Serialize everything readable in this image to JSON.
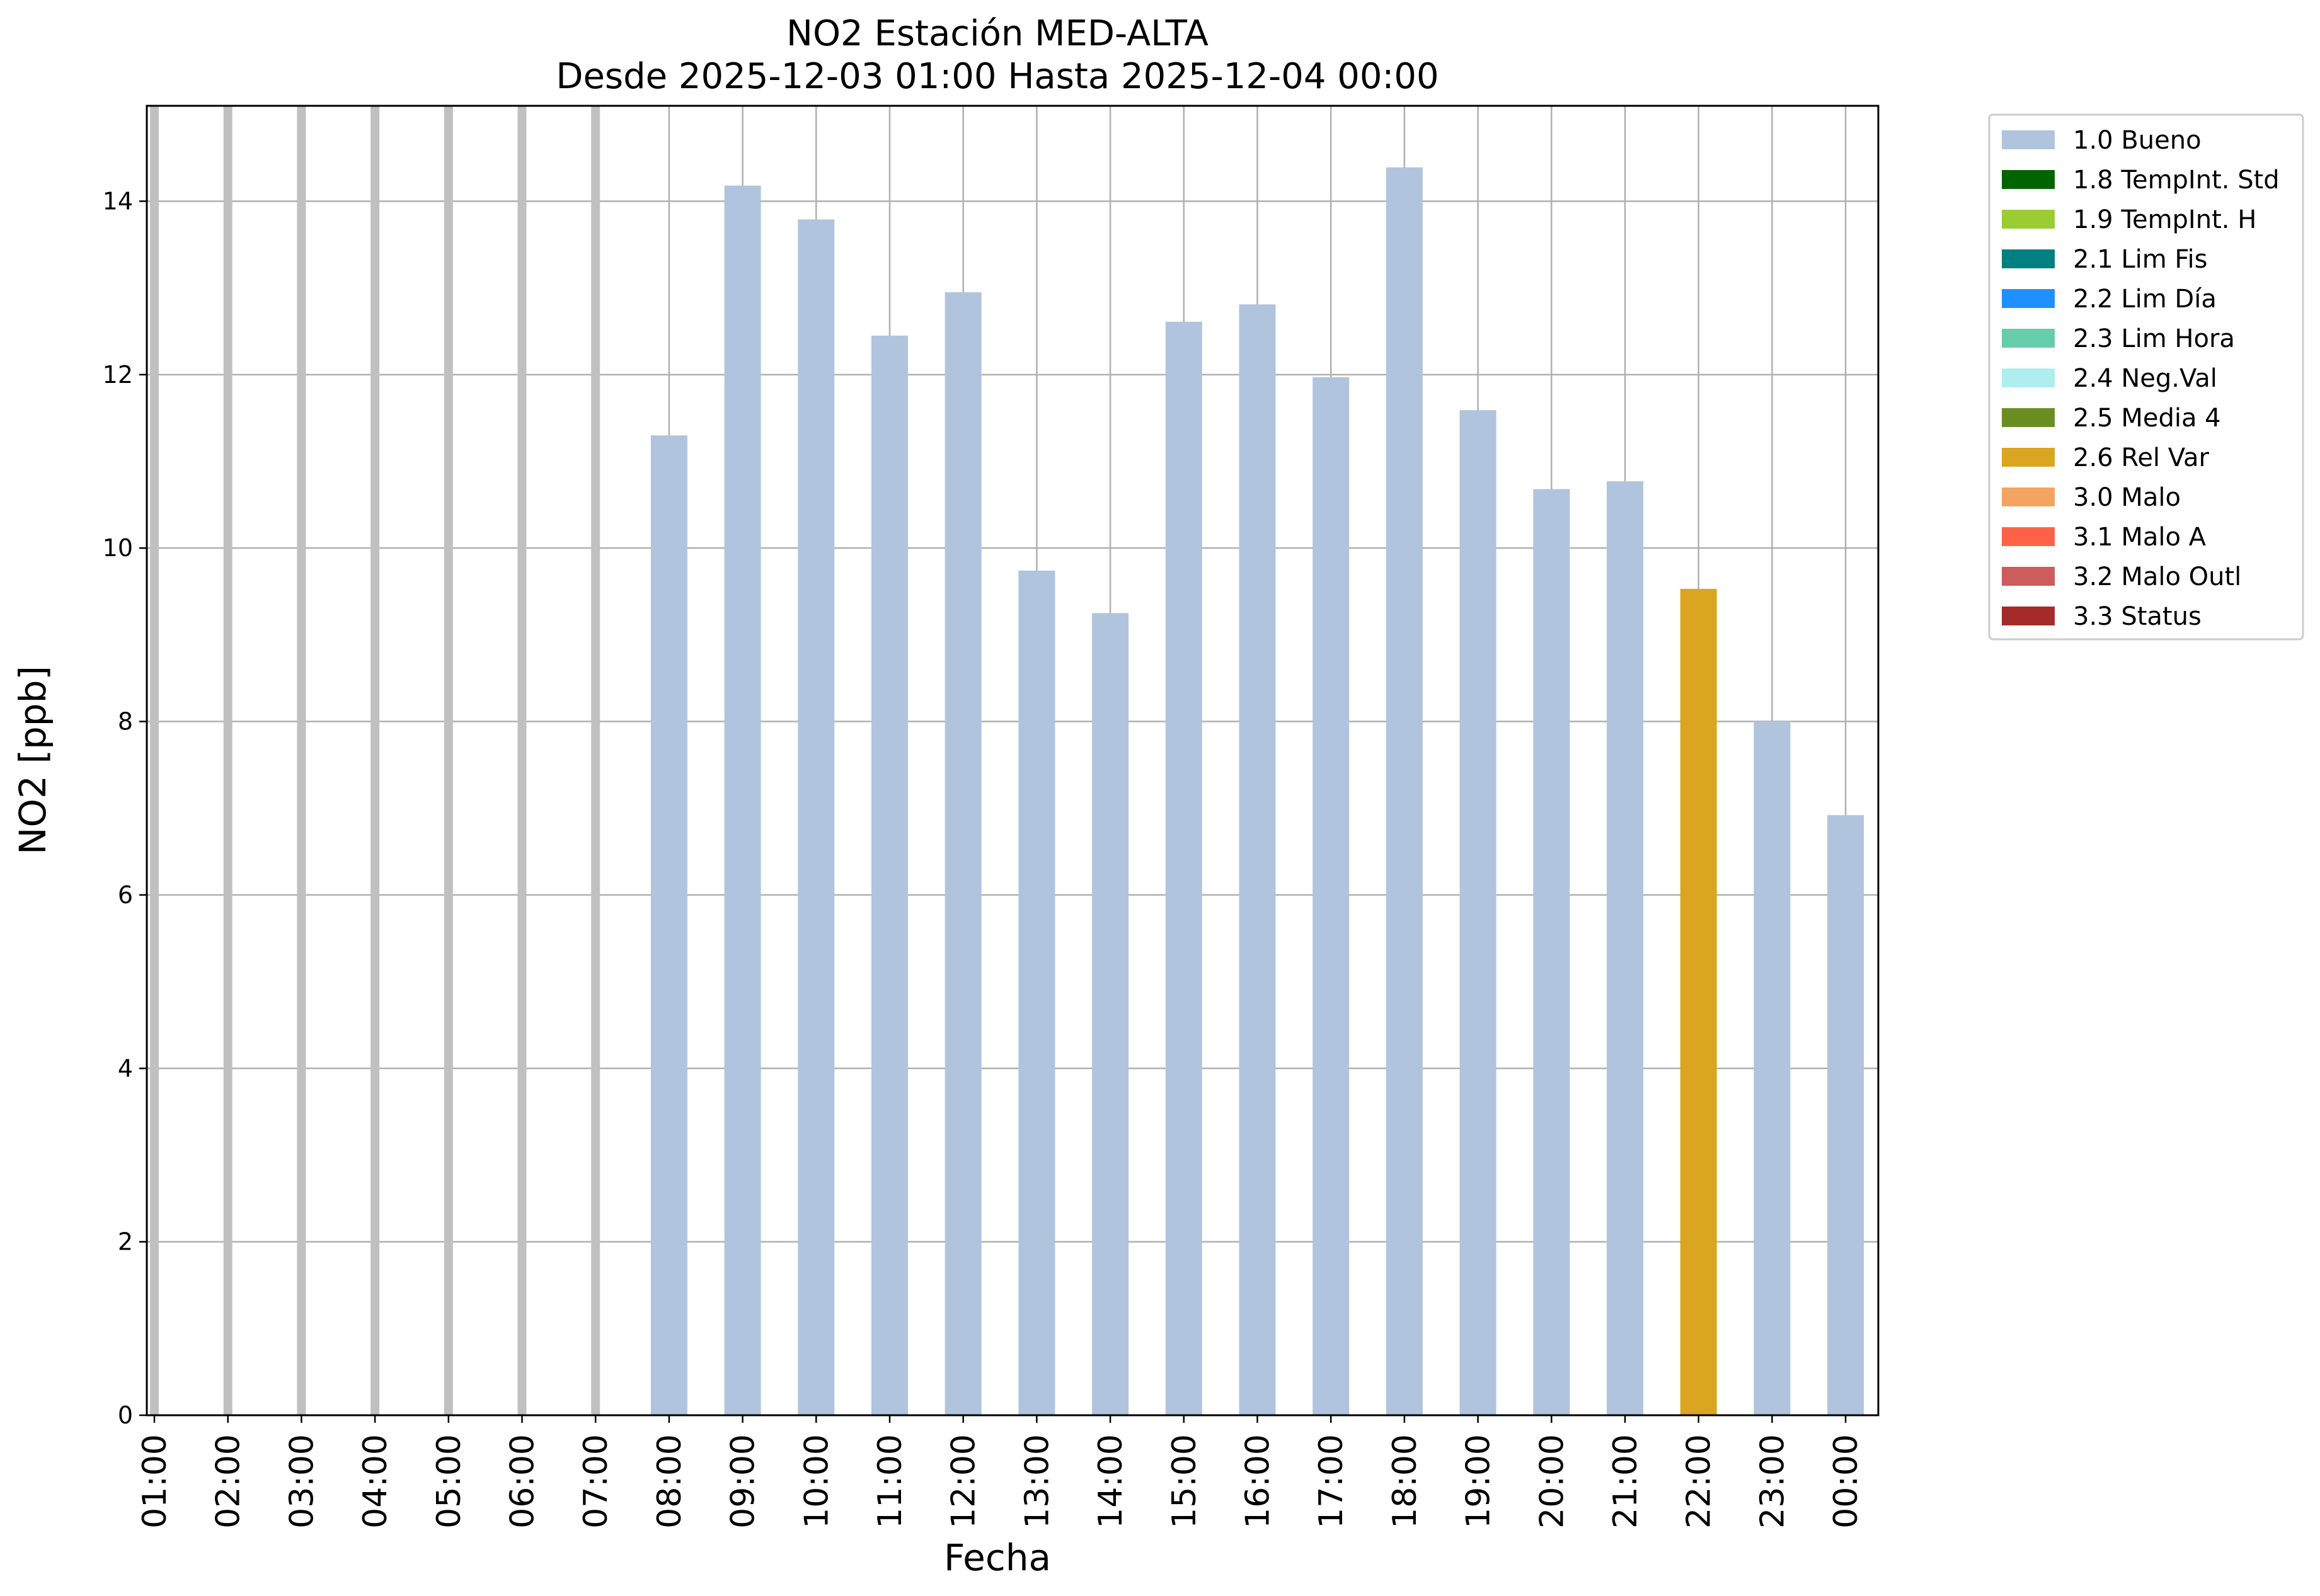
{
  "chart_data": {
    "type": "bar",
    "title_line1": "NO2 Estación MED-ALTA",
    "title_line2": "Desde 2025-12-03 01:00 Hasta 2025-12-04 00:00",
    "xlabel": "Fecha",
    "ylabel": "NO2 [ppb]",
    "ylim": [
      0,
      15.1
    ],
    "yticks": [
      "0",
      "2",
      "4",
      "6",
      "8",
      "10",
      "12",
      "14"
    ],
    "grid": true,
    "legend_position": "outside top-right",
    "categories": [
      "01:00",
      "02:00",
      "03:00",
      "04:00",
      "05:00",
      "06:00",
      "07:00",
      "08:00",
      "09:00",
      "10:00",
      "11:00",
      "12:00",
      "13:00",
      "14:00",
      "15:00",
      "16:00",
      "17:00",
      "18:00",
      "19:00",
      "20:00",
      "21:00",
      "22:00",
      "23:00",
      "00:00"
    ],
    "values": [
      null,
      null,
      null,
      null,
      null,
      null,
      null,
      11.3,
      14.18,
      13.79,
      12.45,
      12.95,
      9.74,
      9.25,
      12.61,
      12.81,
      11.97,
      14.39,
      11.59,
      10.68,
      10.77,
      9.53,
      8.0,
      6.92
    ],
    "flags": [
      "missing",
      "missing",
      "missing",
      "missing",
      "missing",
      "missing",
      "missing",
      "1.0 Bueno",
      "1.0 Bueno",
      "1.0 Bueno",
      "1.0 Bueno",
      "1.0 Bueno",
      "1.0 Bueno",
      "1.0 Bueno",
      "1.0 Bueno",
      "1.0 Bueno",
      "1.0 Bueno",
      "1.0 Bueno",
      "1.0 Bueno",
      "1.0 Bueno",
      "1.0 Bueno",
      "2.6 Rel Var",
      "1.0 Bueno",
      "1.0 Bueno"
    ],
    "missing_marker_color": "#c0c0c0",
    "legend": [
      {
        "label": "1.0 Bueno",
        "color": "#b0c4de"
      },
      {
        "label": "1.8 TempInt. Std",
        "color": "#006400"
      },
      {
        "label": "1.9 TempInt. H",
        "color": "#9acd32"
      },
      {
        "label": "2.1 Lim Fis",
        "color": "#008080"
      },
      {
        "label": "2.2 Lim Día",
        "color": "#1e90ff"
      },
      {
        "label": "2.3 Lim Hora",
        "color": "#66cdaa"
      },
      {
        "label": "2.4 Neg.Val",
        "color": "#afeeee"
      },
      {
        "label": "2.5 Media 4",
        "color": "#6b8e23"
      },
      {
        "label": "2.6 Rel Var",
        "color": "#daa520"
      },
      {
        "label": "3.0 Malo",
        "color": "#f4a460"
      },
      {
        "label": "3.1 Malo A",
        "color": "#ff6347"
      },
      {
        "label": "3.2 Malo Outl",
        "color": "#cd5c5c"
      },
      {
        "label": "3.3 Status",
        "color": "#a52a2a"
      }
    ]
  }
}
